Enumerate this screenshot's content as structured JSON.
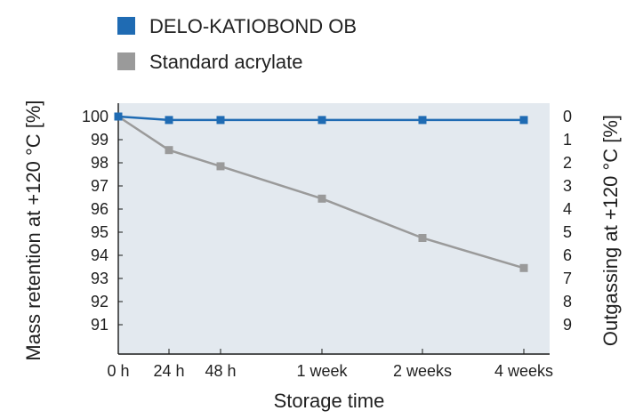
{
  "chart_data": {
    "type": "line",
    "categories": [
      "0 h",
      "24 h",
      "48 h",
      "1 week",
      "2 weeks",
      "4 weeks"
    ],
    "series": [
      {
        "name": "DELO-KATIOBOND OB",
        "values": [
          100,
          99.85,
          99.85,
          99.85,
          99.85,
          99.85
        ],
        "color": "#1f6bb3"
      },
      {
        "name": "Standard acrylate",
        "values": [
          100,
          98.55,
          97.85,
          96.45,
          94.75,
          93.45
        ],
        "color": "#9a9a9a"
      }
    ],
    "xlabel": "Storage time",
    "ylabel": "Mass retention at +120 °C [%]",
    "ylabel_right": "Outgassing at +120 °C [%]",
    "left_ticks": [
      "100",
      "99",
      "98",
      "97",
      "96",
      "95",
      "94",
      "93",
      "92",
      "91"
    ],
    "right_ticks": [
      "0",
      "1",
      "2",
      "3",
      "4",
      "5",
      "6",
      "7",
      "8",
      "9"
    ],
    "ylim": [
      90,
      100.6
    ],
    "grid": false,
    "legend_position": "top",
    "plot_background": "#e3e9ef"
  }
}
